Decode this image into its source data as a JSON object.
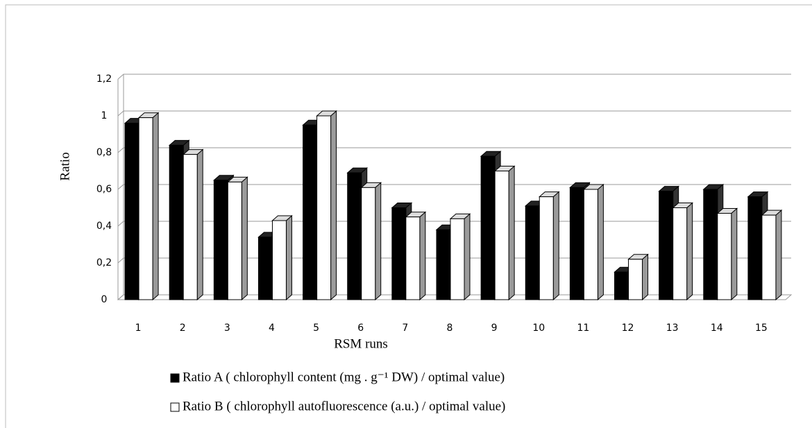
{
  "chart_data": {
    "type": "bar3d",
    "x_label": "RSM runs",
    "y_label": "Ratio",
    "categories": [
      "1",
      "2",
      "3",
      "4",
      "5",
      "6",
      "7",
      "8",
      "9",
      "10",
      "11",
      "12",
      "13",
      "14",
      "15"
    ],
    "series": [
      {
        "name": "Ratio A ( chlorophyll content (mg . g⁻¹ DW) / optimal value)",
        "color": "#000000",
        "values": [
          0.96,
          0.84,
          0.65,
          0.34,
          0.95,
          0.69,
          0.5,
          0.38,
          0.78,
          0.51,
          0.61,
          0.15,
          0.59,
          0.6,
          0.56
        ]
      },
      {
        "name": "Ratio B ( chlorophyll autofluorescence (a.u.) / optimal value)",
        "color": "#ffffff",
        "values": [
          0.99,
          0.79,
          0.64,
          0.43,
          1.0,
          0.61,
          0.45,
          0.44,
          0.7,
          0.56,
          0.6,
          0.22,
          0.5,
          0.47,
          0.46
        ]
      }
    ],
    "ylim": [
      0,
      1.2
    ],
    "yticks": [
      0,
      {
        "value": 0.2,
        "label": "0,2"
      },
      {
        "value": 0.4,
        "label": "0,4"
      },
      {
        "value": 0.6,
        "label": "0,6"
      },
      {
        "value": 0.8,
        "label": "0,8"
      },
      1,
      {
        "value": 1.2,
        "label": "1,2"
      }
    ],
    "grid": true
  }
}
